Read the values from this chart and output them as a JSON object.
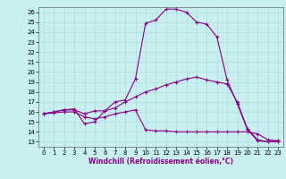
{
  "xlabel": "Windchill (Refroidissement éolien,°C)",
  "xlim": [
    -0.5,
    23.5
  ],
  "ylim": [
    12.5,
    26.5
  ],
  "yticks": [
    13,
    14,
    15,
    16,
    17,
    18,
    19,
    20,
    21,
    22,
    23,
    24,
    25,
    26
  ],
  "xticks": [
    0,
    1,
    2,
    3,
    4,
    5,
    6,
    7,
    8,
    9,
    10,
    11,
    12,
    13,
    14,
    15,
    16,
    17,
    18,
    19,
    20,
    21,
    22,
    23
  ],
  "bg_color": "#c8f0f0",
  "grid_color": "#a8d8d8",
  "line_color": "#880088",
  "curve1_x": [
    0,
    1,
    2,
    3,
    4,
    5,
    6,
    7,
    8,
    9,
    10,
    11,
    12,
    13,
    14,
    15,
    16,
    17,
    18,
    19,
    20,
    21,
    22,
    23
  ],
  "curve1_y": [
    15.8,
    16.0,
    16.2,
    16.3,
    14.8,
    15.0,
    16.1,
    17.0,
    17.2,
    19.3,
    24.9,
    25.2,
    26.3,
    26.3,
    26.0,
    25.0,
    24.8,
    23.5,
    19.2,
    16.8,
    14.2,
    13.1,
    13.0,
    13.0
  ],
  "curve2_x": [
    0,
    1,
    2,
    3,
    4,
    5,
    6,
    7,
    8,
    9,
    10,
    11,
    12,
    13,
    14,
    15,
    16,
    17,
    18,
    19,
    20,
    21,
    22,
    23
  ],
  "curve2_y": [
    15.8,
    16.0,
    16.2,
    16.2,
    15.8,
    16.1,
    16.1,
    16.4,
    17.0,
    17.5,
    18.0,
    18.3,
    18.7,
    19.0,
    19.3,
    19.5,
    19.2,
    19.0,
    18.8,
    17.0,
    14.3,
    13.2,
    13.0,
    13.1
  ],
  "curve3_x": [
    0,
    1,
    2,
    3,
    4,
    5,
    6,
    7,
    8,
    9,
    10,
    11,
    12,
    13,
    14,
    15,
    16,
    17,
    18,
    19,
    20,
    21,
    22,
    23
  ],
  "curve3_y": [
    15.8,
    15.9,
    16.0,
    16.0,
    15.5,
    15.3,
    15.5,
    15.8,
    16.0,
    16.2,
    14.2,
    14.1,
    14.1,
    14.0,
    14.0,
    14.0,
    14.0,
    14.0,
    14.0,
    14.0,
    14.0,
    13.8,
    13.2,
    13.1
  ],
  "label_fontsize": 5,
  "xlabel_fontsize": 5.5,
  "tick_fontsize": 5
}
